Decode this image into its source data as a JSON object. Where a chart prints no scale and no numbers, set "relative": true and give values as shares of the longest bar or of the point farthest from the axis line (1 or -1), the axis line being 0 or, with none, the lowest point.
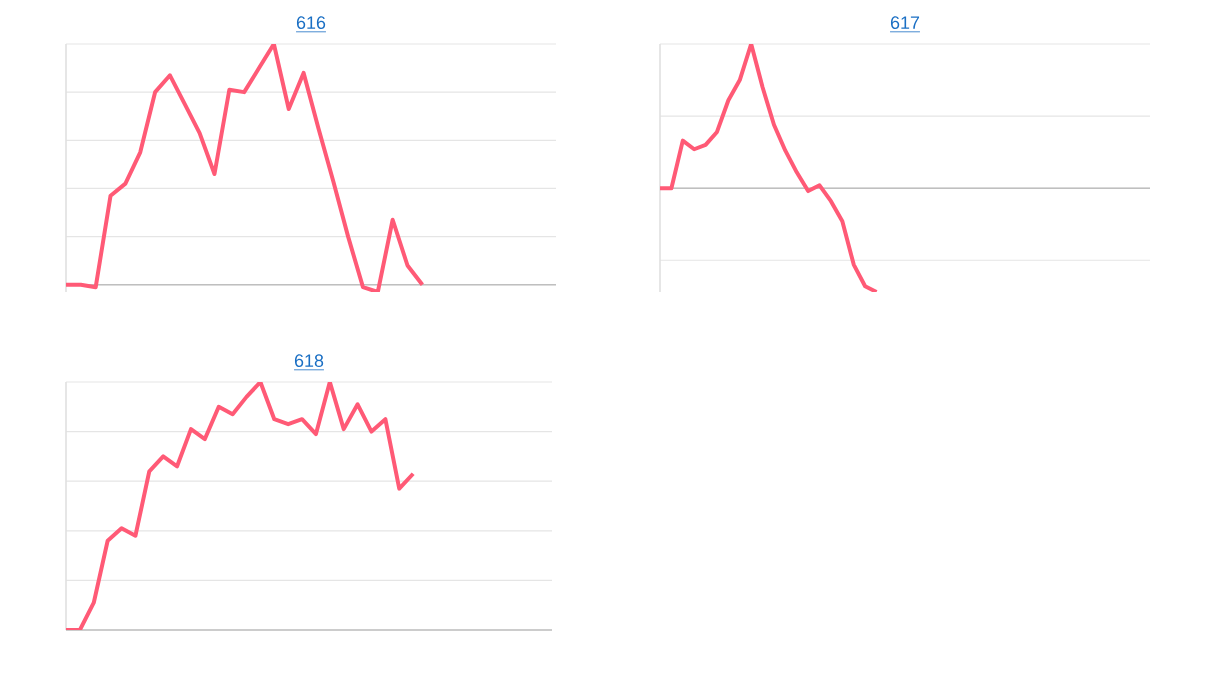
{
  "chart_data": [
    {
      "type": "line",
      "title": "616",
      "relative": true,
      "grid": "y",
      "color": "#ff5a76",
      "categories": [
        null,
        null,
        null,
        null,
        null,
        null,
        null,
        null,
        null,
        null,
        null,
        null,
        null,
        null,
        null,
        null,
        null,
        null,
        null,
        null,
        null,
        null,
        null,
        null,
        null,
        null,
        null,
        null,
        null,
        null,
        null,
        null,
        null,
        null
      ],
      "values": [
        0,
        0,
        -0.01,
        0.37,
        0.42,
        0.55,
        0.8,
        0.87,
        0.75,
        0.63,
        0.46,
        0.81,
        0.8,
        0.9,
        1,
        0.73,
        0.88,
        0.65,
        0.43,
        0.2,
        -0.01,
        -0.03,
        0.27,
        0.08,
        0,
        null,
        null,
        null,
        null,
        null,
        null,
        null,
        null,
        null
      ]
    },
    {
      "type": "line",
      "title": "617",
      "relative": true,
      "grid": "y",
      "color": "#ff5a76",
      "categories": [
        null,
        null,
        null,
        null,
        null,
        null,
        null,
        null,
        null,
        null,
        null,
        null,
        null,
        null,
        null,
        null,
        null,
        null,
        null,
        null,
        null,
        null,
        null,
        null,
        null,
        null,
        null,
        null,
        null,
        null,
        null,
        null,
        null,
        null,
        null,
        null,
        null,
        null,
        null,
        null,
        null,
        null,
        null,
        null
      ],
      "values": [
        0,
        0,
        0.33,
        0.27,
        0.3,
        0.39,
        0.61,
        0.75,
        1,
        0.7,
        0.44,
        0.26,
        0.11,
        -0.02,
        0.02,
        -0.09,
        -0.23,
        -0.53,
        -0.68,
        -0.72,
        null,
        null,
        null,
        null,
        null,
        null,
        null,
        null,
        null,
        null,
        null,
        null,
        null,
        null,
        null,
        null,
        null,
        null,
        null,
        null,
        null,
        null,
        null,
        null
      ]
    },
    {
      "type": "line",
      "title": "618",
      "relative": true,
      "grid": "y",
      "color": "#ff5a76",
      "categories": [
        null,
        null,
        null,
        null,
        null,
        null,
        null,
        null,
        null,
        null,
        null,
        null,
        null,
        null,
        null,
        null,
        null,
        null,
        null,
        null,
        null,
        null,
        null,
        null,
        null,
        null,
        null,
        null,
        null,
        null,
        null,
        null,
        null,
        null,
        null,
        null
      ],
      "values": [
        0,
        0,
        0.11,
        0.36,
        0.41,
        0.38,
        0.64,
        0.7,
        0.66,
        0.81,
        0.77,
        0.9,
        0.87,
        0.94,
        1,
        0.85,
        0.83,
        0.85,
        0.79,
        1,
        0.81,
        0.91,
        0.8,
        0.85,
        0.57,
        0.63,
        null,
        null,
        null,
        null,
        null,
        null,
        null,
        null,
        null,
        null
      ]
    }
  ]
}
